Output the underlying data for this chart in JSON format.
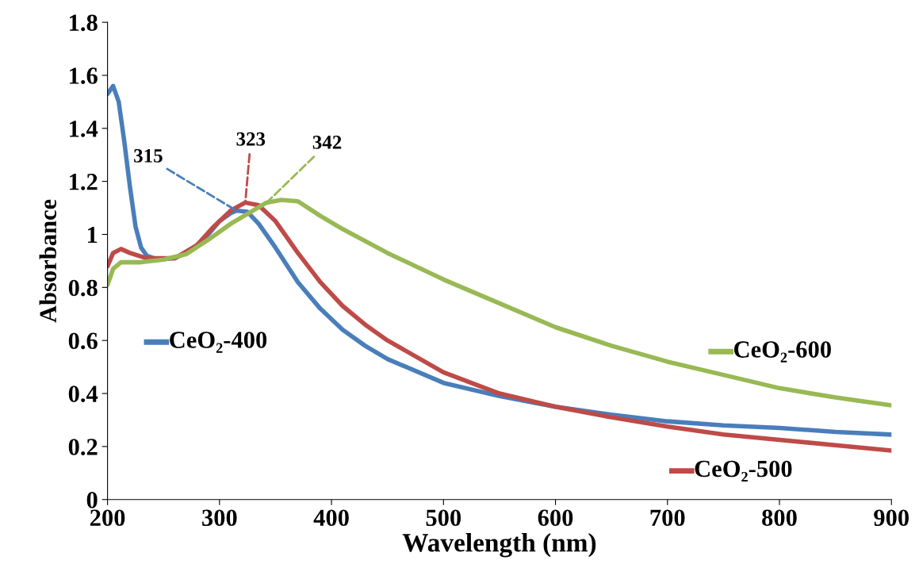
{
  "chart_data": {
    "type": "line",
    "xlabel": "Wavelength (nm)",
    "ylabel": "Absorbance",
    "xlim": [
      200,
      900
    ],
    "xticks": [
      200,
      300,
      400,
      500,
      600,
      700,
      800,
      900
    ],
    "ylim": [
      0,
      1.8
    ],
    "yticks": [
      0,
      0.2,
      0.4,
      0.6,
      0.8,
      1,
      1.2,
      1.4,
      1.6,
      1.8
    ],
    "grid": false,
    "legend": "bottom right",
    "series": [
      {
        "name": "CeO₂-400",
        "color": "#4a7ebb",
        "x": [
          200,
          205,
          210,
          215,
          220,
          225,
          230,
          235,
          245,
          260,
          275,
          290,
          300,
          310,
          315,
          325,
          335,
          350,
          370,
          390,
          410,
          430,
          450,
          500,
          550,
          600,
          650,
          700,
          750,
          800,
          850,
          900
        ],
        "values": [
          1.53,
          1.56,
          1.5,
          1.35,
          1.18,
          1.03,
          0.95,
          0.92,
          0.905,
          0.91,
          0.94,
          1.0,
          1.05,
          1.08,
          1.09,
          1.085,
          1.04,
          0.95,
          0.82,
          0.72,
          0.64,
          0.58,
          0.53,
          0.44,
          0.39,
          0.35,
          0.32,
          0.295,
          0.28,
          0.27,
          0.255,
          0.245
        ]
      },
      {
        "name": "CeO₂-500",
        "color": "#be4b48",
        "x": [
          200,
          205,
          212,
          220,
          235,
          260,
          280,
          295,
          310,
          323,
          335,
          350,
          370,
          390,
          410,
          430,
          450,
          500,
          550,
          600,
          650,
          700,
          750,
          800,
          850,
          900
        ],
        "values": [
          0.88,
          0.93,
          0.945,
          0.93,
          0.91,
          0.91,
          0.96,
          1.03,
          1.09,
          1.12,
          1.11,
          1.05,
          0.93,
          0.82,
          0.73,
          0.66,
          0.6,
          0.48,
          0.4,
          0.35,
          0.31,
          0.275,
          0.245,
          0.225,
          0.205,
          0.185
        ]
      },
      {
        "name": "CeO₂-600",
        "color": "#98b954",
        "x": [
          200,
          205,
          212,
          230,
          250,
          270,
          290,
          310,
          330,
          342,
          355,
          370,
          390,
          410,
          450,
          500,
          550,
          600,
          650,
          700,
          750,
          800,
          850,
          900
        ],
        "values": [
          0.81,
          0.87,
          0.895,
          0.895,
          0.905,
          0.925,
          0.98,
          1.04,
          1.09,
          1.12,
          1.13,
          1.125,
          1.07,
          1.02,
          0.93,
          0.83,
          0.74,
          0.65,
          0.58,
          0.52,
          0.47,
          0.42,
          0.385,
          0.355
        ]
      }
    ],
    "annotations": [
      {
        "text": "315",
        "x": 315,
        "y": 1.09
      },
      {
        "text": "323",
        "x": 323,
        "y": 1.12
      },
      {
        "text": "342",
        "x": 342,
        "y": 1.12
      }
    ]
  }
}
